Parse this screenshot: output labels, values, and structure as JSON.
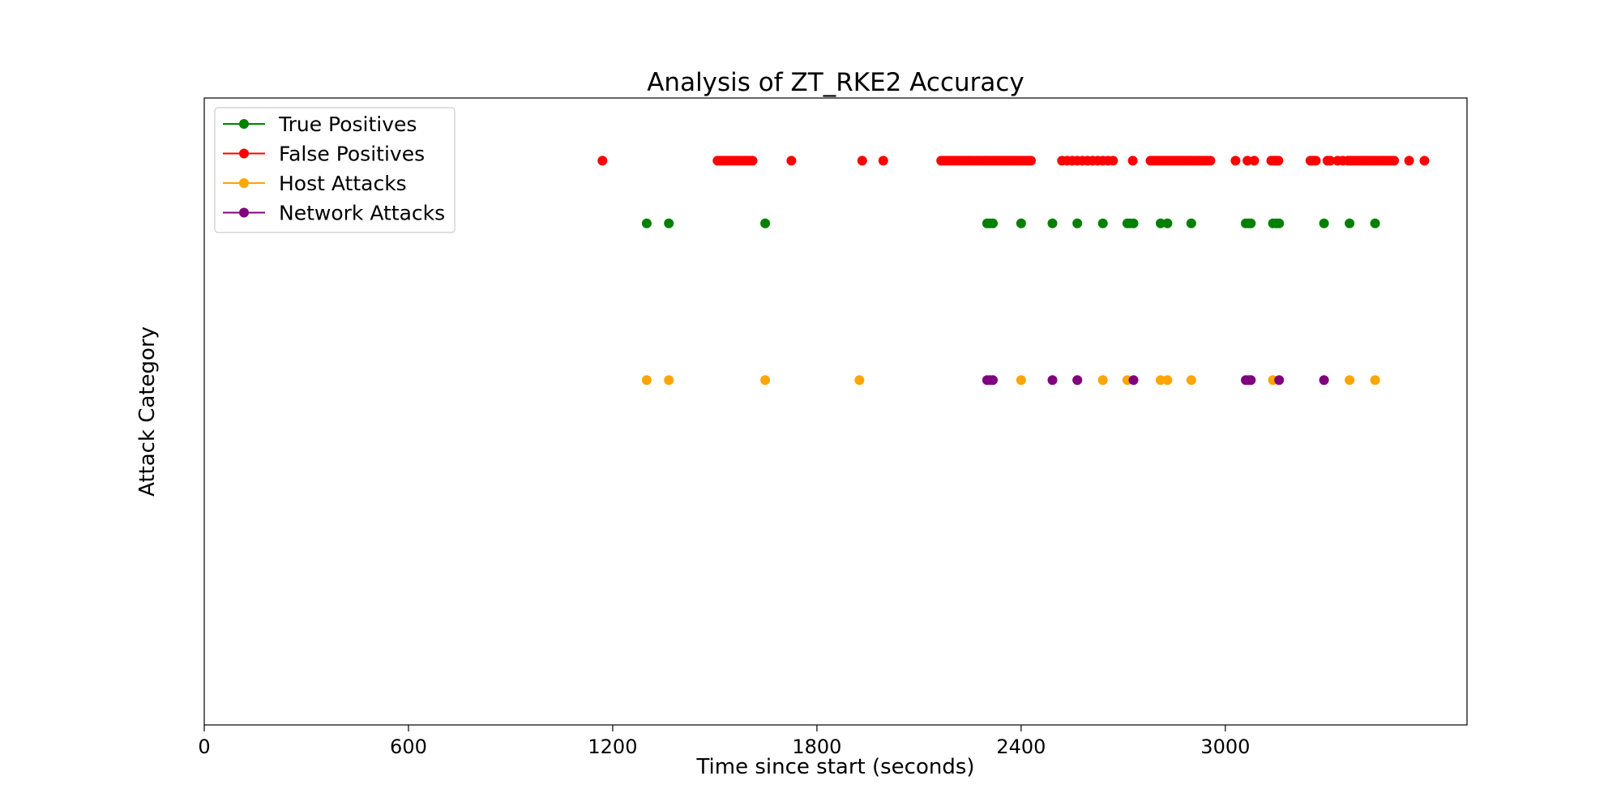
{
  "chart_data": {
    "type": "scatter",
    "title": "Analysis of ZT_RKE2 Accuracy",
    "xlabel": "Time since start (seconds)",
    "ylabel": "Attack Category",
    "xlim": [
      0,
      3710
    ],
    "ylim": [
      -0.6,
      3.4
    ],
    "xticks": [
      0,
      600,
      1200,
      1800,
      2400,
      3000
    ],
    "xtick_labels": [
      "0",
      "600",
      "1200",
      "1800",
      "2400",
      "3000"
    ],
    "grid": false,
    "legend_position": "top-left",
    "series": [
      {
        "name": "True Positives",
        "color": "#008000",
        "y": 2.6,
        "x": [
          1300,
          1365,
          1648,
          2300,
          2308,
          2317,
          2400,
          2492,
          2565,
          2640,
          2712,
          2720,
          2730,
          2810,
          2830,
          2900,
          3060,
          3068,
          3075,
          3140,
          3150,
          3158,
          3290,
          3365,
          3440
        ]
      },
      {
        "name": "False Positives",
        "color": "#ff0000",
        "y": 3.0,
        "x": [
          1170,
          1508,
          1515,
          1523,
          1531,
          1539,
          1547,
          1555,
          1563,
          1571,
          1579,
          1587,
          1595,
          1603,
          1611,
          1725,
          1933,
          1995,
          2165,
          2173,
          2181,
          2189,
          2197,
          2205,
          2213,
          2221,
          2229,
          2237,
          2245,
          2253,
          2261,
          2269,
          2277,
          2285,
          2293,
          2301,
          2309,
          2317,
          2325,
          2333,
          2341,
          2349,
          2357,
          2365,
          2373,
          2381,
          2389,
          2397,
          2405,
          2413,
          2421,
          2429,
          2520,
          2535,
          2550,
          2565,
          2580,
          2595,
          2610,
          2625,
          2640,
          2655,
          2670,
          2728,
          2780,
          2788,
          2796,
          2804,
          2812,
          2820,
          2828,
          2836,
          2844,
          2852,
          2860,
          2868,
          2876,
          2884,
          2892,
          2900,
          2908,
          2916,
          2924,
          2932,
          2940,
          2948,
          2956,
          3030,
          3065,
          3085,
          3135,
          3142,
          3149,
          3156,
          3250,
          3258,
          3266,
          3300,
          3308,
          3330,
          3345,
          3360,
          3368,
          3376,
          3384,
          3392,
          3400,
          3408,
          3416,
          3424,
          3432,
          3440,
          3448,
          3456,
          3464,
          3472,
          3480,
          3488,
          3496,
          3540,
          3585
        ]
      },
      {
        "name": "Host Attacks",
        "color": "#ffa500",
        "y": 1.6,
        "x": [
          1300,
          1365,
          1648,
          1925,
          2400,
          2565,
          2640,
          2712,
          2810,
          2830,
          2900,
          3140,
          3365,
          3440
        ]
      },
      {
        "name": "Network Attacks",
        "color": "#800080",
        "y": 1.6,
        "x": [
          2300,
          2308,
          2317,
          2492,
          2565,
          2730,
          3060,
          3068,
          3075,
          3158,
          3290
        ]
      }
    ]
  }
}
